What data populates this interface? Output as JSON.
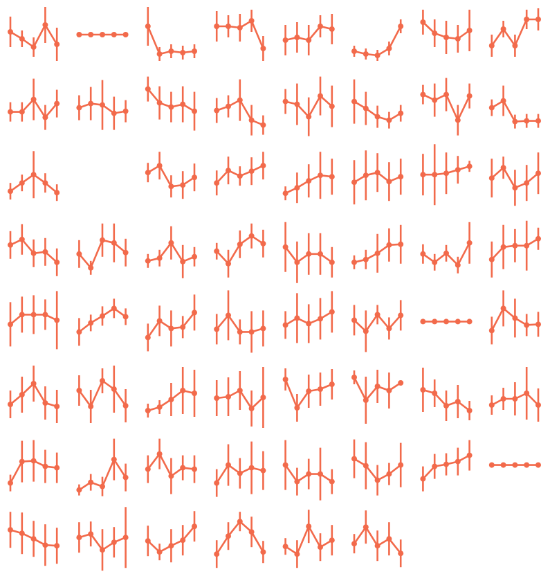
{
  "chart_data": [
    {
      "type": "errorbar",
      "values": [
        4,
        -6,
        -18,
        14,
        -14
      ],
      "errors": [
        22,
        12,
        14,
        26,
        24
      ],
      "color": "#f26a4b",
      "ylim": [
        -50,
        50
      ]
    },
    {
      "type": "errorbar",
      "values": [
        0,
        0,
        0,
        0,
        0
      ],
      "errors": [
        0,
        0,
        0,
        0,
        0
      ],
      "color": "#f26a4b",
      "ylim": [
        -50,
        50
      ]
    },
    {
      "type": "errorbar",
      "values": [
        12,
        -28,
        -24,
        -26,
        -24
      ],
      "errors": [
        28,
        10,
        10,
        10,
        10
      ],
      "color": "#f26a4b",
      "ylim": [
        -50,
        50
      ]
    },
    {
      "type": "errorbar",
      "values": [
        12,
        12,
        10,
        20,
        -20
      ],
      "errors": [
        22,
        16,
        20,
        16,
        18
      ],
      "color": "#f26a4b",
      "ylim": [
        -50,
        50
      ]
    },
    {
      "type": "errorbar",
      "values": [
        -8,
        -4,
        -8,
        12,
        8
      ],
      "errors": [
        22,
        22,
        22,
        16,
        22
      ],
      "color": "#f26a4b",
      "ylim": [
        -50,
        50
      ]
    },
    {
      "type": "errorbar",
      "values": [
        -24,
        -28,
        -30,
        -20,
        12
      ],
      "errors": [
        8,
        8,
        8,
        10,
        10
      ],
      "color": "#f26a4b",
      "ylim": [
        -50,
        50
      ]
    },
    {
      "type": "errorbar",
      "values": [
        18,
        2,
        -4,
        -6,
        6
      ],
      "errors": [
        18,
        20,
        24,
        20,
        30
      ],
      "color": "#f26a4b",
      "ylim": [
        -50,
        50
      ]
    },
    {
      "type": "errorbar",
      "values": [
        -16,
        8,
        -16,
        22,
        22
      ],
      "errors": [
        16,
        12,
        16,
        14,
        16
      ],
      "color": "#f26a4b",
      "ylim": [
        -50,
        50
      ]
    },
    {
      "type": "errorbar",
      "values": [
        -8,
        -8,
        10,
        -16,
        4
      ],
      "errors": [
        14,
        14,
        30,
        18,
        20
      ],
      "color": "#f26a4b",
      "ylim": [
        -50,
        50
      ]
    },
    {
      "type": "errorbar",
      "values": [
        -2,
        4,
        2,
        -10,
        -7
      ],
      "errors": [
        18,
        24,
        36,
        24,
        16
      ],
      "color": "#f26a4b",
      "ylim": [
        -50,
        50
      ]
    },
    {
      "type": "errorbar",
      "values": [
        25,
        5,
        -1,
        3,
        -7
      ],
      "errors": [
        18,
        24,
        22,
        26,
        28
      ],
      "color": "#f26a4b",
      "ylim": [
        -50,
        50
      ]
    },
    {
      "type": "errorbar",
      "values": [
        -6,
        0,
        9,
        -20,
        -27
      ],
      "errors": [
        18,
        16,
        30,
        22,
        14
      ],
      "color": "#f26a4b",
      "ylim": [
        -50,
        50
      ]
    },
    {
      "type": "errorbar",
      "values": [
        7,
        3,
        -15,
        15,
        0
      ],
      "errors": [
        18,
        30,
        28,
        28,
        30
      ],
      "color": "#f26a4b",
      "ylim": [
        -50,
        50
      ]
    },
    {
      "type": "errorbar",
      "values": [
        7,
        -3,
        -15,
        -20,
        -10
      ],
      "errors": [
        32,
        24,
        16,
        12,
        12
      ],
      "color": "#f26a4b",
      "ylim": [
        -50,
        50
      ]
    },
    {
      "type": "errorbar",
      "values": [
        17,
        9,
        17,
        -20,
        15
      ],
      "errors": [
        14,
        24,
        24,
        22,
        18
      ],
      "color": "#f26a4b",
      "ylim": [
        -50,
        50
      ]
    },
    {
      "type": "errorbar",
      "values": [
        -2,
        8,
        -22,
        -21,
        -21
      ],
      "errors": [
        12,
        22,
        10,
        10,
        10
      ],
      "color": "#f26a4b",
      "ylim": [
        -50,
        50
      ]
    },
    {
      "type": "errorbar",
      "values": [
        -19,
        -7,
        5,
        -7,
        -21
      ],
      "errors": [
        12,
        12,
        34,
        14,
        12
      ],
      "color": "#f26a4b",
      "ylim": [
        -50,
        50
      ]
    },
    {
      "type": "errorbar",
      "values": [
        8,
        18,
        -12,
        -10,
        1
      ],
      "errors": [
        14,
        20,
        16,
        20,
        20
      ],
      "color": "#f26a4b",
      "ylim": [
        -50,
        50
      ]
    },
    {
      "type": "errorbar",
      "values": [
        -7,
        11,
        3,
        10,
        18
      ],
      "errors": [
        18,
        20,
        14,
        20,
        20
      ],
      "color": "#f26a4b",
      "ylim": [
        -50,
        50
      ]
    },
    {
      "type": "errorbar",
      "values": [
        -22,
        -14,
        -4,
        4,
        2
      ],
      "errors": [
        10,
        22,
        24,
        34,
        26
      ],
      "color": "#f26a4b",
      "ylim": [
        -50,
        50
      ]
    },
    {
      "type": "errorbar",
      "values": [
        -6,
        4,
        8,
        -5,
        2
      ],
      "errors": [
        32,
        36,
        28,
        28,
        26
      ],
      "color": "#f26a4b",
      "ylim": [
        -50,
        50
      ]
    },
    {
      "type": "errorbar",
      "values": [
        5,
        5,
        7,
        12,
        17
      ],
      "errors": [
        30,
        44,
        30,
        20,
        8
      ],
      "color": "#f26a4b",
      "ylim": [
        -50,
        50
      ]
    },
    {
      "type": "errorbar",
      "values": [
        0,
        15,
        -14,
        -7,
        7
      ],
      "errors": [
        28,
        16,
        26,
        26,
        30
      ],
      "color": "#f26a4b",
      "ylim": [
        -50,
        50
      ]
    },
    {
      "type": "errorbar",
      "values": [
        7,
        15,
        -5,
        -3,
        -18
      ],
      "errors": [
        20,
        22,
        20,
        20,
        20
      ],
      "color": "#f26a4b",
      "ylim": [
        -50,
        50
      ]
    },
    {
      "type": "errorbar",
      "values": [
        -6,
        -26,
        14,
        10,
        -4
      ],
      "errors": [
        20,
        10,
        24,
        28,
        20
      ],
      "color": "#f26a4b",
      "ylim": [
        -50,
        50
      ]
    },
    {
      "type": "errorbar",
      "values": [
        -16,
        -12,
        10,
        -17,
        -10
      ],
      "errors": [
        10,
        12,
        24,
        24,
        14
      ],
      "color": "#f26a4b",
      "ylim": [
        -50,
        50
      ]
    },
    {
      "type": "errorbar",
      "values": [
        -2,
        -20,
        8,
        20,
        9
      ],
      "errors": [
        12,
        20,
        20,
        18,
        20
      ],
      "color": "#f26a4b",
      "ylim": [
        -50,
        50
      ]
    },
    {
      "type": "errorbar",
      "values": [
        4,
        -18,
        -6,
        -6,
        -18
      ],
      "errors": [
        36,
        30,
        30,
        30,
        22
      ],
      "color": "#f26a4b",
      "ylim": [
        -50,
        50
      ]
    },
    {
      "type": "errorbar",
      "values": [
        -18,
        -14,
        -5,
        7,
        8
      ],
      "errors": [
        10,
        14,
        28,
        24,
        28
      ],
      "color": "#f26a4b",
      "ylim": [
        -50,
        50
      ]
    },
    {
      "type": "errorbar",
      "values": [
        -6,
        -18,
        -5,
        -22,
        10
      ],
      "errors": [
        14,
        12,
        12,
        12,
        30
      ],
      "color": "#f26a4b",
      "ylim": [
        -50,
        50
      ]
    },
    {
      "type": "errorbar",
      "values": [
        -14,
        4,
        6,
        6,
        16
      ],
      "errors": [
        26,
        32,
        24,
        36,
        16
      ],
      "color": "#f26a4b",
      "ylim": [
        -50,
        50
      ]
    },
    {
      "type": "errorbar",
      "values": [
        -4,
        10,
        10,
        10,
        2
      ],
      "errors": [
        32,
        26,
        28,
        22,
        42
      ],
      "color": "#f26a4b",
      "ylim": [
        -50,
        50
      ]
    },
    {
      "type": "errorbar",
      "values": [
        -15,
        -2,
        8,
        19,
        7
      ],
      "errors": [
        20,
        12,
        14,
        14,
        12
      ],
      "color": "#f26a4b",
      "ylim": [
        -50,
        50
      ]
    },
    {
      "type": "errorbar",
      "values": [
        -23,
        1,
        -10,
        -8,
        13
      ],
      "errors": [
        20,
        22,
        26,
        16,
        26
      ],
      "color": "#f26a4b",
      "ylim": [
        -50,
        50
      ]
    },
    {
      "type": "errorbar",
      "values": [
        -11,
        9,
        -15,
        -15,
        -10
      ],
      "errors": [
        22,
        36,
        18,
        30,
        26
      ],
      "color": "#f26a4b",
      "ylim": [
        -50,
        50
      ]
    },
    {
      "type": "errorbar",
      "values": [
        -5,
        5,
        -3,
        4,
        14
      ],
      "errors": [
        20,
        36,
        28,
        30,
        30
      ],
      "color": "#f26a4b",
      "ylim": [
        -50,
        50
      ]
    },
    {
      "type": "errorbar",
      "values": [
        2,
        -14,
        10,
        -10,
        9
      ],
      "errors": [
        22,
        30,
        14,
        16,
        22
      ],
      "color": "#f26a4b",
      "ylim": [
        -50,
        50
      ]
    },
    {
      "type": "errorbar",
      "values": [
        0,
        0,
        0,
        0,
        0
      ],
      "errors": [
        0,
        0,
        0,
        0,
        0
      ],
      "color": "#f26a4b",
      "ylim": [
        -50,
        50
      ]
    },
    {
      "type": "errorbar",
      "values": [
        -13,
        19,
        5,
        -5,
        -4
      ],
      "errors": [
        20,
        26,
        28,
        16,
        18
      ],
      "color": "#f26a4b",
      "ylim": [
        -50,
        50
      ]
    },
    {
      "type": "errorbar",
      "values": [
        -16,
        -2,
        14,
        -14,
        -19
      ],
      "errors": [
        20,
        26,
        26,
        24,
        24
      ],
      "color": "#f26a4b",
      "ylim": [
        -50,
        50
      ]
    },
    {
      "type": "errorbar",
      "values": [
        4,
        -19,
        18,
        6,
        -18
      ],
      "errors": [
        22,
        24,
        18,
        34,
        24
      ],
      "color": "#f26a4b",
      "ylim": [
        -50,
        50
      ]
    },
    {
      "type": "errorbar",
      "values": [
        -25,
        -20,
        -9,
        4,
        0
      ],
      "errors": [
        10,
        10,
        24,
        34,
        34
      ],
      "color": "#f26a4b",
      "ylim": [
        -50,
        50
      ]
    },
    {
      "type": "errorbar",
      "values": [
        -7,
        -5,
        4,
        -22,
        -6
      ],
      "errors": [
        26,
        28,
        28,
        26,
        44
      ],
      "color": "#f26a4b",
      "ylim": [
        -50,
        50
      ]
    },
    {
      "type": "errorbar",
      "values": [
        20,
        -21,
        3,
        6,
        13
      ],
      "errors": [
        16,
        20,
        24,
        24,
        22
      ],
      "color": "#f26a4b",
      "ylim": [
        -50,
        50
      ]
    },
    {
      "type": "errorbar",
      "values": [
        23,
        -10,
        10,
        4,
        15
      ],
      "errors": [
        10,
        34,
        24,
        26,
        0
      ],
      "color": "#f26a4b",
      "ylim": [
        -50,
        50
      ]
    },
    {
      "type": "errorbar",
      "values": [
        5,
        0,
        -18,
        -12,
        -25
      ],
      "errors": [
        32,
        20,
        22,
        24,
        14
      ],
      "color": "#f26a4b",
      "ylim": [
        -50,
        50
      ]
    },
    {
      "type": "errorbar",
      "values": [
        -17,
        -8,
        -8,
        0,
        -17
      ],
      "errors": [
        14,
        16,
        24,
        38,
        24
      ],
      "color": "#f26a4b",
      "ylim": [
        -50,
        50
      ]
    },
    {
      "type": "errorbar",
      "values": [
        -26,
        5,
        6,
        -2,
        -4
      ],
      "errors": [
        12,
        30,
        30,
        24,
        22
      ],
      "color": "#f26a4b",
      "ylim": [
        -50,
        50
      ]
    },
    {
      "type": "errorbar",
      "values": [
        -36,
        -25,
        -31,
        8,
        -18
      ],
      "errors": [
        8,
        12,
        14,
        30,
        20
      ],
      "color": "#f26a4b",
      "ylim": [
        -50,
        50
      ]
    },
    {
      "type": "errorbar",
      "values": [
        -6,
        16,
        -16,
        -4,
        -6
      ],
      "errors": [
        20,
        22,
        26,
        18,
        20
      ],
      "color": "#f26a4b",
      "ylim": [
        -50,
        50
      ]
    },
    {
      "type": "errorbar",
      "values": [
        -26,
        0,
        -12,
        -4,
        -8
      ],
      "errors": [
        20,
        30,
        22,
        38,
        28
      ],
      "color": "#f26a4b",
      "ylim": [
        -50,
        50
      ]
    },
    {
      "type": "errorbar",
      "values": [
        0,
        -24,
        -13,
        -13,
        -24
      ],
      "errors": [
        36,
        20,
        22,
        38,
        18
      ],
      "color": "#f26a4b",
      "ylim": [
        -50,
        50
      ]
    },
    {
      "type": "errorbar",
      "values": [
        9,
        -1,
        -22,
        -13,
        0
      ],
      "errors": [
        28,
        34,
        22,
        16,
        32
      ],
      "color": "#f26a4b",
      "ylim": [
        -50,
        50
      ]
    },
    {
      "type": "errorbar",
      "values": [
        -20,
        -2,
        1,
        5,
        14
      ],
      "errors": [
        18,
        18,
        16,
        20,
        22
      ],
      "color": "#f26a4b",
      "ylim": [
        -50,
        50
      ]
    },
    {
      "type": "errorbar",
      "values": [
        0,
        0,
        0,
        0,
        0
      ],
      "errors": [
        0,
        0,
        0,
        0,
        0
      ],
      "color": "#f26a4b",
      "ylim": [
        -50,
        50
      ]
    },
    {
      "type": "errorbar",
      "values": [
        10,
        5,
        -3,
        -12,
        -13
      ],
      "errors": [
        26,
        30,
        26,
        30,
        26
      ],
      "color": "#f26a4b",
      "ylim": [
        -50,
        50
      ]
    },
    {
      "type": "errorbar",
      "values": [
        -1,
        4,
        -19,
        -8,
        -1
      ],
      "errors": [
        22,
        18,
        30,
        22,
        44
      ],
      "color": "#f26a4b",
      "ylim": [
        -50,
        50
      ]
    },
    {
      "type": "errorbar",
      "values": [
        -6,
        -22,
        -13,
        -5,
        15
      ],
      "errors": [
        22,
        12,
        24,
        22,
        22
      ],
      "color": "#f26a4b",
      "ylim": [
        -50,
        50
      ]
    },
    {
      "type": "errorbar",
      "values": [
        -25,
        1,
        22,
        7,
        -22
      ],
      "errors": [
        20,
        20,
        14,
        22,
        16
      ],
      "color": "#f26a4b",
      "ylim": [
        -50,
        50
      ]
    },
    {
      "type": "errorbar",
      "values": [
        -14,
        -25,
        15,
        -15,
        -5
      ],
      "errors": [
        12,
        20,
        24,
        20,
        22
      ],
      "color": "#f26a4b",
      "ylim": [
        -50,
        50
      ]
    },
    {
      "type": "errorbar",
      "values": [
        -10,
        14,
        -13,
        -3,
        -24
      ],
      "errors": [
        14,
        24,
        22,
        24,
        20
      ],
      "color": "#f26a4b",
      "ylim": [
        -50,
        50
      ]
    }
  ]
}
